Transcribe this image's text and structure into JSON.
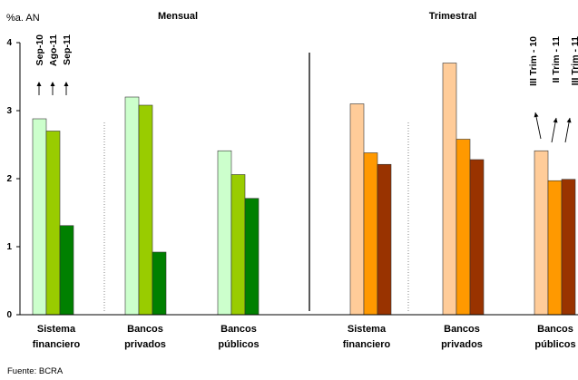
{
  "chart_data": {
    "type": "bar",
    "ylabel": "%a. AN",
    "ylim": [
      0,
      4
    ],
    "yticks": [
      "0",
      "1",
      "2",
      "3",
      "4"
    ],
    "grid": false,
    "panels": [
      {
        "title": "Mensual",
        "categories": [
          [
            "Sistema",
            "financiero"
          ],
          [
            "Bancos",
            "privados"
          ],
          [
            "Bancos",
            "públicos"
          ]
        ],
        "series": [
          {
            "name": "Sep-10",
            "color": "#ccffcc",
            "values": [
              2.88,
              3.2,
              2.41
            ]
          },
          {
            "name": "Ago-11",
            "color": "#99cc00",
            "values": [
              2.7,
              3.08,
              2.06
            ]
          },
          {
            "name": "Sep-11",
            "color": "#008000",
            "values": [
              1.31,
              0.92,
              1.71
            ]
          }
        ]
      },
      {
        "title": "Trimestral",
        "categories": [
          [
            "Sistema",
            "financiero"
          ],
          [
            "Bancos",
            "privados"
          ],
          [
            "Bancos",
            "públicos"
          ]
        ],
        "series": [
          {
            "name": "III Trim - 10",
            "color": "#ffcc99",
            "values": [
              3.1,
              3.7,
              2.41
            ]
          },
          {
            "name": "II Trim - 11",
            "color": "#ff9900",
            "values": [
              2.38,
              2.58,
              1.97
            ]
          },
          {
            "name": "III Trim - 11",
            "color": "#993300",
            "values": [
              2.21,
              2.28,
              1.99
            ]
          }
        ]
      }
    ]
  },
  "source": "Fuente: BCRA"
}
